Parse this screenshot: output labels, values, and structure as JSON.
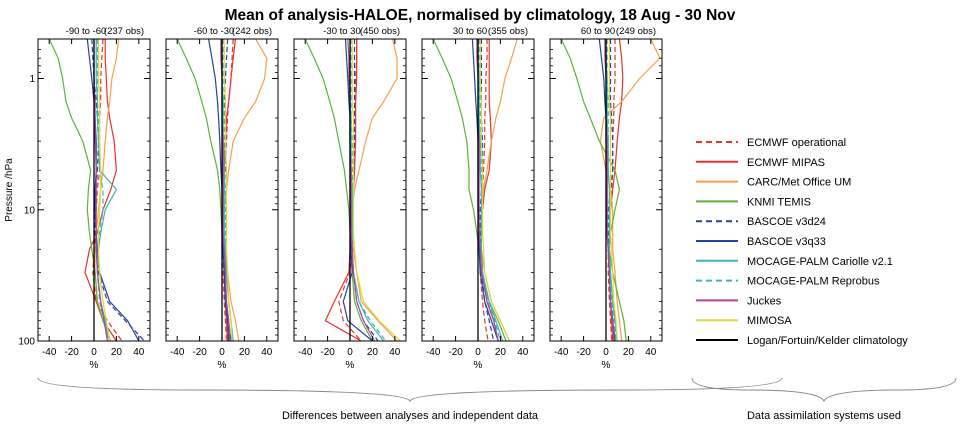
{
  "title": "Mean of analysis-HALOE, normalised by climatology, 18 Aug - 30 Nov",
  "ylabel": "Pressure /hPa",
  "xlabel": "%",
  "y_ticks": [
    {
      "value": 1,
      "label": "1"
    },
    {
      "value": 10,
      "label": "10"
    },
    {
      "value": 100,
      "label": "100"
    }
  ],
  "x_ticks": [
    {
      "value": -40,
      "label": "-40"
    },
    {
      "value": -20,
      "label": "-20"
    },
    {
      "value": 0,
      "label": "0"
    },
    {
      "value": 20,
      "label": "20"
    },
    {
      "value": 40,
      "label": "40"
    }
  ],
  "captions": {
    "differences": "Differences between analyses and independent data",
    "systems": "Data assimilation systems used"
  },
  "legend": [
    {
      "key": "ecmwf_op",
      "label": "ECMWF operational",
      "color": "#e8322c",
      "dash": true
    },
    {
      "key": "ecmwf_mipas",
      "label": "ECMWF MIPAS",
      "color": "#e8322c",
      "dash": false
    },
    {
      "key": "carc",
      "label": "CARC/Met Office UM",
      "color": "#f5a04a",
      "dash": false
    },
    {
      "key": "knmi",
      "label": "KNMI TEMIS",
      "color": "#5bb33a",
      "dash": false
    },
    {
      "key": "bascoe24",
      "label": "BASCOE v3d24",
      "color": "#24439a",
      "dash": true
    },
    {
      "key": "bascoe33",
      "label": "BASCOE v3q33",
      "color": "#24439a",
      "dash": false
    },
    {
      "key": "mocage_car",
      "label": "MOCAGE-PALM Cariolle v2.1",
      "color": "#3fb3b8",
      "dash": false
    },
    {
      "key": "mocage_rep",
      "label": "MOCAGE-PALM Reprobus",
      "color": "#3fb3b8",
      "dash": true
    },
    {
      "key": "juckes",
      "label": "Juckes",
      "color": "#b0449c",
      "dash": false
    },
    {
      "key": "mimosa",
      "label": "MIMOSA",
      "color": "#d9d93a",
      "dash": false
    },
    {
      "key": "clim",
      "label": "Logan/Fortuin/Kelder climatology",
      "color": "#000000",
      "dash": false
    }
  ],
  "chart_data": {
    "type": "line",
    "title": "Mean of analysis-HALOE, normalised by climatology, 18 Aug - 30 Nov",
    "xlabel": "%",
    "ylabel": "Pressure /hPa",
    "xlim": [
      -50,
      50
    ],
    "ylim": [
      100,
      0.5
    ],
    "y_scale": "log",
    "pressure_levels": [
      0.5,
      0.7,
      1,
      1.5,
      2,
      3,
      5,
      7,
      10,
      15,
      20,
      30,
      50,
      70,
      100
    ],
    "panels": [
      {
        "title": "-90 to -60",
        "obs": "(237 obs)",
        "series": {
          "ecmwf_op": [
            8,
            7,
            6,
            6,
            5,
            5,
            5,
            3,
            2,
            1,
            0,
            -1,
            2,
            12,
            25
          ],
          "ecmwf_mipas": [
            10,
            10,
            11,
            12,
            14,
            18,
            20,
            15,
            8,
            3,
            -4,
            -8,
            2,
            8,
            20
          ],
          "carc": [
            22,
            20,
            16,
            14,
            12,
            10,
            8,
            6,
            4,
            2,
            1,
            1,
            3,
            8,
            15
          ],
          "knmi": [
            -40,
            -32,
            -28,
            -25,
            -20,
            -10,
            -3,
            -5,
            -6,
            -4,
            -2,
            1,
            3,
            8,
            14
          ],
          "bascoe24": [
            -2,
            -1,
            0,
            2,
            3,
            4,
            3,
            2,
            1,
            1,
            2,
            4,
            12,
            28,
            45
          ],
          "bascoe33": [
            -6,
            -4,
            -2,
            0,
            1,
            2,
            2,
            1,
            1,
            2,
            3,
            5,
            14,
            30,
            40
          ],
          "mocage_car": [
            2,
            2,
            2,
            3,
            3,
            4,
            5,
            20,
            10,
            6,
            4,
            3,
            6,
            10,
            14
          ],
          "mocage_rep": [
            3,
            3,
            3,
            3,
            4,
            4,
            5,
            8,
            8,
            5,
            4,
            3,
            5,
            9,
            13
          ],
          "juckes": [
            0,
            0,
            0,
            1,
            1,
            1,
            2,
            2,
            2,
            2,
            2,
            3,
            6,
            9,
            12
          ],
          "mimosa": [
            4,
            4,
            4,
            5,
            5,
            5,
            6,
            6,
            5,
            4,
            4,
            5,
            8,
            11,
            14
          ],
          "clim": [
            0,
            0,
            0,
            0,
            0,
            0,
            0,
            0,
            0,
            0,
            0,
            0,
            0,
            0,
            0
          ]
        }
      },
      {
        "title": "-60 to -30",
        "obs": "(242 obs)",
        "series": {
          "ecmwf_op": [
            10,
            9,
            8,
            6,
            5,
            4,
            3,
            2,
            1,
            1,
            1,
            1,
            2,
            3,
            4
          ],
          "ecmwf_mipas": [
            12,
            10,
            8,
            6,
            4,
            3,
            2,
            2,
            1,
            1,
            1,
            2,
            3,
            4,
            5
          ],
          "carc": [
            30,
            40,
            38,
            30,
            20,
            10,
            6,
            4,
            2,
            2,
            3,
            5,
            8,
            12,
            15
          ],
          "knmi": [
            -40,
            -32,
            -24,
            -18,
            -14,
            -10,
            -4,
            -2,
            -1,
            0,
            1,
            2,
            4,
            6,
            8
          ],
          "bascoe24": [
            5,
            4,
            3,
            2,
            2,
            2,
            2,
            2,
            1,
            1,
            1,
            2,
            3,
            5,
            8
          ],
          "bascoe33": [
            -12,
            -9,
            -6,
            -4,
            -3,
            -2,
            -1,
            0,
            0,
            0,
            1,
            2,
            3,
            5,
            6
          ],
          "mocage_car": [
            0,
            0,
            0,
            1,
            1,
            1,
            2,
            2,
            2,
            2,
            3,
            4,
            6,
            8,
            10
          ],
          "mocage_rep": [
            1,
            1,
            1,
            1,
            2,
            2,
            2,
            3,
            3,
            3,
            3,
            4,
            6,
            8,
            9
          ],
          "juckes": [
            -1,
            -1,
            0,
            0,
            0,
            1,
            1,
            1,
            1,
            1,
            2,
            3,
            4,
            6,
            7
          ],
          "mimosa": [
            2,
            2,
            2,
            3,
            3,
            3,
            4,
            4,
            4,
            4,
            4,
            5,
            6,
            8,
            9
          ],
          "clim": [
            0,
            0,
            0,
            0,
            0,
            0,
            0,
            0,
            0,
            0,
            0,
            0,
            0,
            0,
            0
          ]
        }
      },
      {
        "title": "-30 to 30",
        "obs": "(450 obs)",
        "series": {
          "ecmwf_op": [
            6,
            6,
            5,
            5,
            4,
            4,
            3,
            3,
            2,
            2,
            1,
            0,
            -10,
            -6,
            10
          ],
          "ecmwf_mipas": [
            6,
            6,
            6,
            5,
            5,
            5,
            4,
            3,
            2,
            1,
            0,
            -1,
            -14,
            -22,
            10
          ],
          "carc": [
            38,
            42,
            42,
            30,
            20,
            14,
            8,
            4,
            2,
            2,
            3,
            6,
            10,
            25,
            42
          ],
          "knmi": [
            -40,
            -32,
            -24,
            -18,
            -14,
            -10,
            -5,
            -3,
            -1,
            0,
            1,
            2,
            4,
            10,
            20
          ],
          "bascoe24": [
            4,
            4,
            4,
            4,
            4,
            4,
            3,
            3,
            2,
            2,
            2,
            3,
            6,
            12,
            25
          ],
          "bascoe33": [
            -4,
            -3,
            -2,
            -1,
            0,
            0,
            0,
            0,
            0,
            1,
            1,
            2,
            -6,
            -2,
            20
          ],
          "mocage_car": [
            0,
            0,
            0,
            0,
            1,
            1,
            1,
            2,
            2,
            2,
            2,
            3,
            8,
            16,
            30
          ],
          "mocage_rep": [
            1,
            1,
            1,
            1,
            1,
            2,
            2,
            2,
            2,
            2,
            2,
            3,
            8,
            18,
            32
          ],
          "juckes": [
            -2,
            -1,
            -1,
            0,
            0,
            0,
            1,
            1,
            1,
            1,
            2,
            3,
            6,
            12,
            22
          ],
          "mimosa": [
            2,
            2,
            2,
            2,
            3,
            3,
            3,
            3,
            3,
            3,
            4,
            6,
            12,
            26,
            45
          ],
          "clim": [
            0,
            0,
            0,
            0,
            0,
            0,
            0,
            0,
            0,
            0,
            0,
            0,
            0,
            0,
            0
          ]
        }
      },
      {
        "title": "30 to 60",
        "obs": "(355 obs)",
        "series": {
          "ecmwf_op": [
            8,
            8,
            7,
            7,
            6,
            6,
            5,
            4,
            3,
            2,
            2,
            2,
            4,
            6,
            9
          ],
          "ecmwf_mipas": [
            10,
            10,
            10,
            10,
            11,
            12,
            10,
            6,
            4,
            3,
            3,
            4,
            8,
            14,
            18
          ],
          "carc": [
            35,
            30,
            24,
            20,
            16,
            12,
            8,
            5,
            3,
            2,
            3,
            6,
            12,
            20,
            28
          ],
          "knmi": [
            -40,
            -32,
            -24,
            -18,
            -14,
            -10,
            -8,
            -8,
            -4,
            -1,
            1,
            3,
            10,
            18,
            25
          ],
          "bascoe24": [
            3,
            3,
            3,
            3,
            3,
            4,
            4,
            3,
            2,
            2,
            2,
            3,
            6,
            10,
            14
          ],
          "bascoe33": [
            -5,
            -4,
            -3,
            -2,
            -1,
            0,
            0,
            0,
            0,
            1,
            1,
            2,
            6,
            12,
            18
          ],
          "mocage_car": [
            0,
            0,
            1,
            1,
            1,
            2,
            2,
            3,
            3,
            3,
            3,
            4,
            10,
            16,
            22
          ],
          "mocage_rep": [
            1,
            1,
            1,
            2,
            2,
            2,
            3,
            3,
            3,
            3,
            3,
            4,
            9,
            15,
            20
          ],
          "juckes": [
            -1,
            -1,
            0,
            0,
            0,
            1,
            1,
            1,
            1,
            1,
            2,
            3,
            8,
            14,
            18
          ],
          "mimosa": [
            2,
            2,
            2,
            3,
            3,
            3,
            4,
            4,
            4,
            4,
            5,
            6,
            12,
            20,
            28
          ],
          "clim": [
            0,
            0,
            0,
            0,
            0,
            0,
            0,
            0,
            0,
            0,
            0,
            0,
            0,
            0,
            0
          ]
        }
      },
      {
        "title": "60 to 90",
        "obs": "(249 obs)",
        "series": {
          "ecmwf_op": [
            8,
            8,
            8,
            7,
            7,
            6,
            6,
            5,
            4,
            3,
            2,
            2,
            3,
            4,
            5
          ],
          "ecmwf_mipas": [
            12,
            14,
            15,
            14,
            12,
            10,
            8,
            6,
            4,
            3,
            3,
            3,
            4,
            5,
            6
          ],
          "carc": [
            40,
            48,
            30,
            14,
            -2,
            -5,
            0,
            4,
            6,
            6,
            6,
            8,
            10,
            12,
            14
          ],
          "knmi": [
            -40,
            -32,
            -26,
            -20,
            -14,
            -6,
            8,
            12,
            8,
            4,
            3,
            6,
            12,
            16,
            18
          ],
          "bascoe24": [
            4,
            4,
            4,
            4,
            5,
            6,
            6,
            4,
            2,
            2,
            2,
            3,
            5,
            7,
            9
          ],
          "bascoe33": [
            -6,
            -4,
            -2,
            -1,
            0,
            0,
            1,
            1,
            1,
            1,
            2,
            3,
            4,
            6,
            8
          ],
          "mocage_car": [
            0,
            0,
            1,
            1,
            1,
            2,
            2,
            3,
            3,
            3,
            3,
            4,
            6,
            8,
            10
          ],
          "mocage_rep": [
            1,
            1,
            1,
            2,
            2,
            2,
            2,
            3,
            3,
            3,
            3,
            4,
            5,
            7,
            9
          ],
          "juckes": [
            -1,
            -1,
            0,
            0,
            0,
            1,
            1,
            1,
            1,
            1,
            2,
            3,
            4,
            6,
            7
          ],
          "mimosa": [
            3,
            3,
            3,
            3,
            4,
            4,
            4,
            4,
            4,
            4,
            5,
            6,
            7,
            9,
            10
          ],
          "clim": [
            0,
            0,
            0,
            0,
            0,
            0,
            0,
            0,
            0,
            0,
            0,
            0,
            0,
            0,
            0
          ]
        }
      }
    ]
  }
}
